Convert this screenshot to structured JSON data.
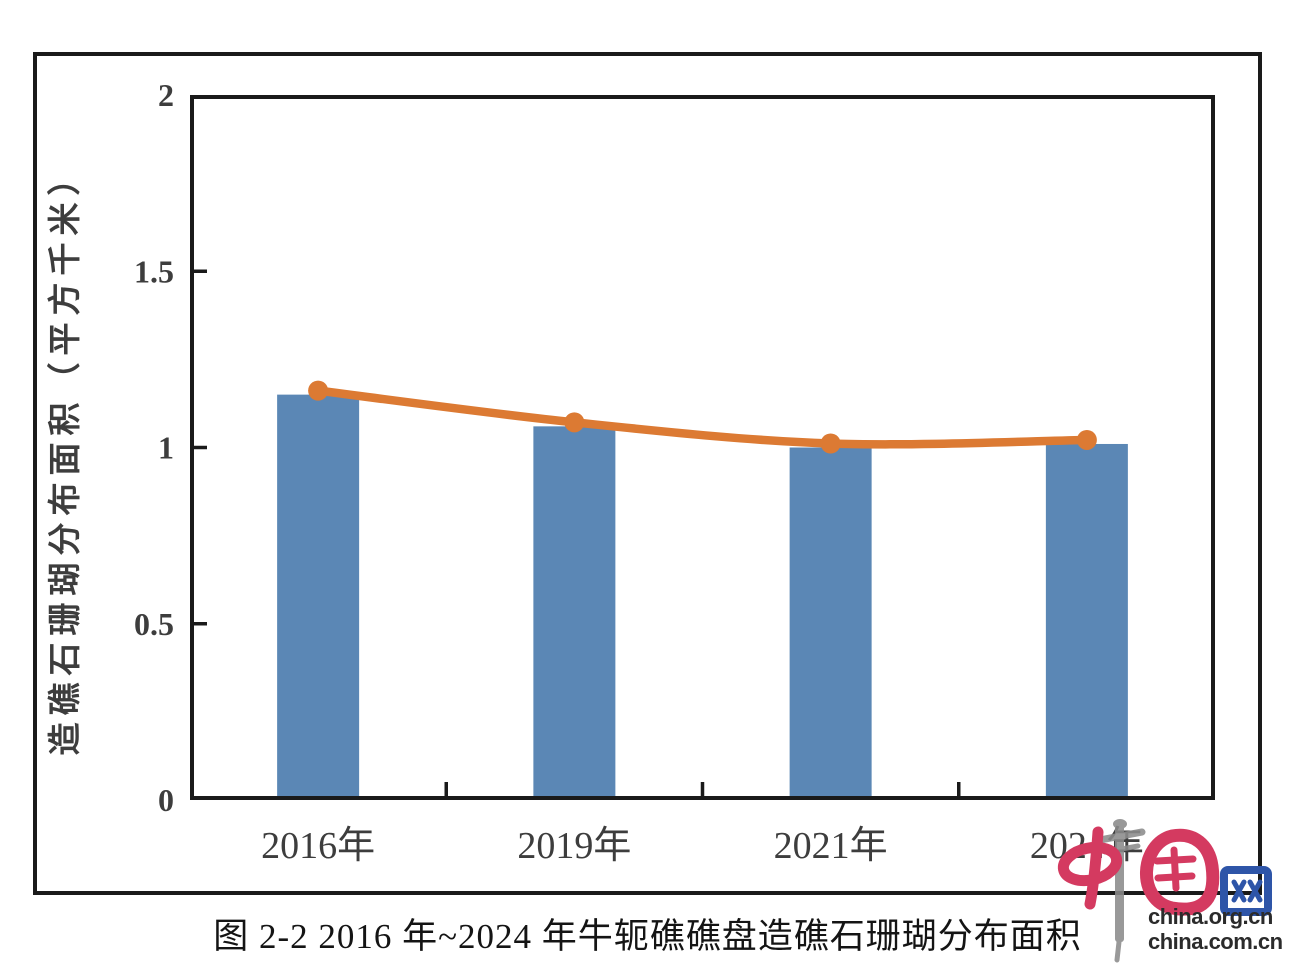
{
  "figure": {
    "caption": "图 2-2 2016 年~2024 年牛轭礁礁盘造礁石珊瑚分布面积"
  },
  "chart_data": {
    "type": "bar",
    "combo": "bar+line",
    "title": "",
    "categories": [
      "2016年",
      "2019年",
      "2021年",
      "2024年"
    ],
    "bar": {
      "values": [
        1.15,
        1.06,
        1.0,
        1.01
      ],
      "color": "#5b87b5"
    },
    "line": {
      "values": [
        1.15,
        1.06,
        1.0,
        1.01
      ],
      "color": "#dc7a33"
    },
    "xlabel": "",
    "ylabel": "造礁石珊瑚分布面积（平方千米）",
    "ylim": [
      0,
      2
    ],
    "yticks": [
      0,
      0.5,
      1,
      1.5,
      2
    ],
    "ytick_labels": [
      "0",
      "0.5",
      "1",
      "1.5",
      "2"
    ],
    "grid": false,
    "legend_position": "none",
    "axis_color": "#1a1a1a",
    "tick_label_color": "#3d3d3d"
  },
  "watermark": {
    "logo_name": "中国网",
    "logo_red": "#d43a60",
    "logo_blue": "#2e55a8",
    "pillar_gray": "#8b8b8b",
    "line1": "china.org.cn",
    "line2": "china.com.cn",
    "text_color": "#2b2b2b"
  }
}
